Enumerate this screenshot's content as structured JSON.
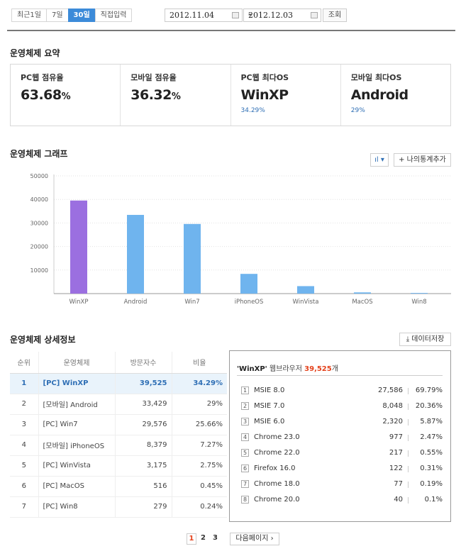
{
  "period": {
    "tabs": [
      {
        "label": "최근1일",
        "active": false
      },
      {
        "label": "7일",
        "active": false
      },
      {
        "label": "30일",
        "active": true
      },
      {
        "label": "직접입력",
        "active": false
      }
    ],
    "start_date": "2012.11.04",
    "end_date": "2012.12.03",
    "separator": "-",
    "search_label": "조회"
  },
  "summary": {
    "title": "운영체제 요약",
    "cards": [
      {
        "label": "PC웹 점유율",
        "value": "63.68",
        "unit": "%",
        "sub": ""
      },
      {
        "label": "모바일 점유율",
        "value": "36.32",
        "unit": "%",
        "sub": ""
      },
      {
        "label": "PC웹 최다OS",
        "value": "WinXP",
        "unit": "",
        "sub": "34.29%"
      },
      {
        "label": "모바일 최다OS",
        "value": "Android",
        "unit": "",
        "sub": "29%"
      }
    ]
  },
  "graph": {
    "title": "운영체제 그래프",
    "chart_type_button": "ıl ▾",
    "add_stat_button": "+ 나의통계추가"
  },
  "chart_data": {
    "type": "bar",
    "categories": [
      "WinXP",
      "Android",
      "Win7",
      "iPhoneOS",
      "WinVista",
      "MacOS",
      "Win8"
    ],
    "values": [
      39525,
      33429,
      29576,
      8379,
      3175,
      516,
      279
    ],
    "colors": [
      "#9b6fe0",
      "#6fb4ee",
      "#6fb4ee",
      "#6fb4ee",
      "#6fb4ee",
      "#6fb4ee",
      "#6fb4ee"
    ],
    "yticks": [
      10000,
      20000,
      30000,
      40000,
      50000
    ],
    "ylim": [
      0,
      50000
    ],
    "title": "",
    "xlabel": "",
    "ylabel": ""
  },
  "detail": {
    "title": "운영체제 상세정보",
    "save_button": "⤓ 데이터저장",
    "headers": [
      "순위",
      "운영체제",
      "방문자수",
      "비율"
    ],
    "rows": [
      {
        "rank": "1",
        "os": "[PC] WinXP",
        "visits": "39,525",
        "ratio": "34.29%",
        "selected": true
      },
      {
        "rank": "2",
        "os": "[모바일] Android",
        "visits": "33,429",
        "ratio": "29%",
        "selected": false
      },
      {
        "rank": "3",
        "os": "[PC] Win7",
        "visits": "29,576",
        "ratio": "25.66%",
        "selected": false
      },
      {
        "rank": "4",
        "os": "[모바일] iPhoneOS",
        "visits": "8,379",
        "ratio": "7.27%",
        "selected": false
      },
      {
        "rank": "5",
        "os": "[PC] WinVista",
        "visits": "3,175",
        "ratio": "2.75%",
        "selected": false
      },
      {
        "rank": "6",
        "os": "[PC] MacOS",
        "visits": "516",
        "ratio": "0.45%",
        "selected": false
      },
      {
        "rank": "7",
        "os": "[PC] Win8",
        "visits": "279",
        "ratio": "0.24%",
        "selected": false
      }
    ]
  },
  "browser_panel": {
    "os_name": "'WinXP'",
    "suffix": " 웹브라우저 ",
    "count": "39,525",
    "count_unit": "개",
    "rows": [
      {
        "num": "1",
        "name": "MSIE 8.0",
        "count": "27,586",
        "pct": "69.79%"
      },
      {
        "num": "2",
        "name": "MSIE 7.0",
        "count": "8,048",
        "pct": "20.36%"
      },
      {
        "num": "3",
        "name": "MSIE 6.0",
        "count": "2,320",
        "pct": "5.87%"
      },
      {
        "num": "4",
        "name": "Chrome 23.0",
        "count": "977",
        "pct": "2.47%"
      },
      {
        "num": "5",
        "name": "Chrome 22.0",
        "count": "217",
        "pct": "0.55%"
      },
      {
        "num": "6",
        "name": "Firefox 16.0",
        "count": "122",
        "pct": "0.31%"
      },
      {
        "num": "7",
        "name": "Chrome 18.0",
        "count": "77",
        "pct": "0.19%"
      },
      {
        "num": "8",
        "name": "Chrome 20.0",
        "count": "40",
        "pct": "0.1%"
      }
    ]
  },
  "pagination": {
    "current": "1",
    "pages": [
      "2",
      "3"
    ],
    "next_label": "다음페이지 ›"
  }
}
